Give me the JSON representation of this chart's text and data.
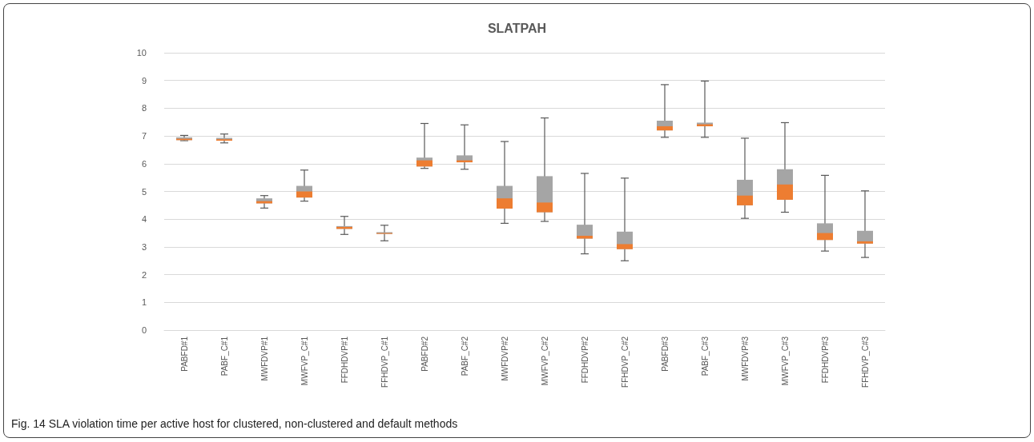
{
  "chart_data": {
    "type": "box",
    "title": "SLATPAH",
    "categories": [
      "PABFD#1",
      "PABF_C#1",
      "MWFDVP#1",
      "MWFVP_C#1",
      "FFDHDVP#1",
      "FFHDVP_C#1",
      "PABFD#2",
      "PABF_C#2",
      "MWFDVP#2",
      "MWFVP_C#2",
      "FFDHDVP#2",
      "FFHDVP_C#2",
      "PABFD#3",
      "PABF_C#3",
      "MWFDVP#3",
      "MWFVP_C#3",
      "FFDHDVP#3",
      "FFHDVP_C#3"
    ],
    "series": [
      {
        "color": "#a5a5a5",
        "boxes": [
          {
            "low": 6.83,
            "q1": 6.85,
            "median": 6.9,
            "q3": 6.95,
            "high": 7.02
          },
          {
            "low": 6.75,
            "q1": 6.83,
            "median": 6.88,
            "q3": 6.93,
            "high": 7.07
          },
          {
            "low": 4.4,
            "q1": 4.57,
            "median": 4.65,
            "q3": 4.75,
            "high": 4.85
          },
          {
            "low": 4.65,
            "q1": 4.78,
            "median": 5.0,
            "q3": 5.2,
            "high": 5.77
          },
          {
            "low": 3.45,
            "q1": 3.65,
            "median": 3.72,
            "q3": 3.75,
            "high": 4.1
          },
          {
            "low": 3.22,
            "q1": 3.47,
            "median": 3.5,
            "q3": 3.53,
            "high": 3.78
          },
          {
            "low": 5.83,
            "q1": 5.9,
            "median": 6.12,
            "q3": 6.22,
            "high": 7.45
          },
          {
            "low": 5.8,
            "q1": 6.05,
            "median": 6.12,
            "q3": 6.3,
            "high": 7.4
          },
          {
            "low": 3.85,
            "q1": 4.38,
            "median": 4.75,
            "q3": 5.2,
            "high": 6.8
          },
          {
            "low": 3.92,
            "q1": 4.25,
            "median": 4.6,
            "q3": 5.55,
            "high": 7.65
          },
          {
            "low": 2.75,
            "q1": 3.3,
            "median": 3.4,
            "q3": 3.8,
            "high": 5.65
          },
          {
            "low": 2.5,
            "q1": 2.92,
            "median": 3.1,
            "q3": 3.55,
            "high": 5.48
          },
          {
            "low": 6.95,
            "q1": 7.2,
            "median": 7.35,
            "q3": 7.55,
            "high": 8.85
          },
          {
            "low": 6.95,
            "q1": 7.35,
            "median": 7.42,
            "q3": 7.48,
            "high": 8.98
          },
          {
            "low": 4.03,
            "q1": 4.5,
            "median": 4.85,
            "q3": 5.42,
            "high": 6.92
          },
          {
            "low": 4.25,
            "q1": 4.7,
            "median": 5.25,
            "q3": 5.8,
            "high": 7.48
          },
          {
            "low": 2.85,
            "q1": 3.25,
            "median": 3.5,
            "q3": 3.85,
            "high": 5.58
          },
          {
            "low": 2.62,
            "q1": 3.12,
            "median": 3.2,
            "q3": 3.58,
            "high": 5.02
          }
        ]
      }
    ],
    "ylim": [
      0,
      10
    ],
    "yticks": [
      0,
      1,
      2,
      3,
      4,
      5,
      6,
      7,
      8,
      9,
      10
    ],
    "grid": "y",
    "annotations": [
      "Fig. 14 SLA violation time per active host for clustered, non-clustered and default methods"
    ]
  }
}
